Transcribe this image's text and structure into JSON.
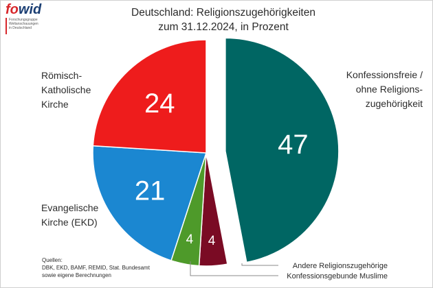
{
  "logo": {
    "word_fo": "fo",
    "word_wid": "wid",
    "subtitle_lines": [
      "Forschungsgruppe",
      "Weltanschauungen",
      "in Deutschland"
    ]
  },
  "title_lines": [
    "Deutschland: Religionszugehörigkeiten",
    "zum 31.12.2024, in Prozent"
  ],
  "source_lines": [
    "Quellen:",
    "DBK, EKD, BAMF, REMID, Stat. Bundesamt",
    "sowie eigene Berechnungen"
  ],
  "chart_data": {
    "type": "pie",
    "title": "Deutschland: Religionszugehörigkeiten zum 31.12.2024, in Prozent",
    "unit": "Prozent",
    "slices": [
      {
        "label": "Konfessionsfreie / ohne Religionszugehörigkeit",
        "label_lines": [
          "Konfessionsfreie /",
          "ohne Religions-",
          "zugehörigkeit"
        ],
        "value": 47,
        "display": "47",
        "color": "#006663",
        "exploded": true
      },
      {
        "label": "Andere Religionszugehörige",
        "label_lines": [
          "Andere Religionszugehörige"
        ],
        "value": 4,
        "display": "4",
        "color": "#7a0b24",
        "exploded": false
      },
      {
        "label": "Konfessionsgebunde Muslime",
        "label_lines": [
          "Konfessionsgebunde Muslime"
        ],
        "value": 4,
        "display": "4",
        "color": "#4e9a2a",
        "exploded": false
      },
      {
        "label": "Evangelische Kirche (EKD)",
        "label_lines": [
          "Evangelische",
          "Kirche (EKD)"
        ],
        "value": 21,
        "display": "21",
        "color": "#1b87d1",
        "exploded": false
      },
      {
        "label": "Römisch-Katholische Kirche",
        "label_lines": [
          "Römisch-",
          "Katholische",
          "Kirche"
        ],
        "value": 24,
        "display": "24",
        "color": "#ee1c1c",
        "exploded": false
      }
    ],
    "start": "12 o'clock, clockwise"
  }
}
